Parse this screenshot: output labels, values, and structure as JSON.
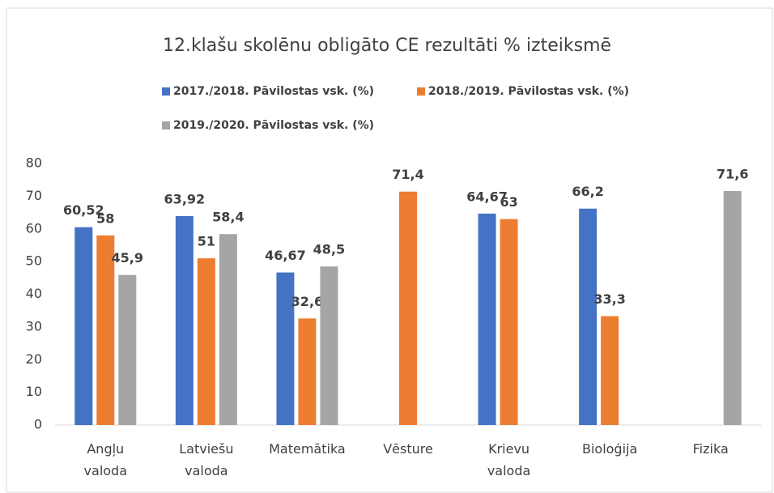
{
  "chart_data": {
    "type": "bar",
    "title": "12.klašu skolēnu obligāto CE rezultāti % izteiksmē",
    "categories": [
      "Angļu valoda",
      "Latviešu valoda",
      "Matemātika",
      "Vēsture",
      "Krievu valoda",
      "Bioloģija",
      "Fizika"
    ],
    "series": [
      {
        "name": "2017./2018. Pāvilostas vsk. (%)",
        "color": "#4472c4",
        "values": [
          60.52,
          63.92,
          46.67,
          null,
          64.67,
          66.2,
          null
        ],
        "value_labels": [
          "60,52",
          "63,92",
          "46,67",
          null,
          "64,67",
          "66,2",
          null
        ]
      },
      {
        "name": "2018./2019. Pāvilostas vsk. (%)",
        "color": "#ed7d31",
        "values": [
          58,
          51,
          32.6,
          71.4,
          63,
          33.3,
          null
        ],
        "value_labels": [
          "58",
          "51",
          "32,6",
          "71,4",
          "63",
          "33,3",
          null
        ]
      },
      {
        "name": "2019./2020. Pāvilostas vsk. (%)",
        "color": "#a5a5a5",
        "values": [
          45.9,
          58.4,
          48.5,
          null,
          null,
          null,
          71.6
        ],
        "value_labels": [
          "45,9",
          "58,4",
          "48,5",
          null,
          null,
          null,
          "71,6"
        ]
      }
    ],
    "ylim": [
      0,
      80
    ],
    "yticks": [
      0,
      10,
      20,
      30,
      40,
      50,
      60,
      70,
      80
    ],
    "grid": false
  }
}
